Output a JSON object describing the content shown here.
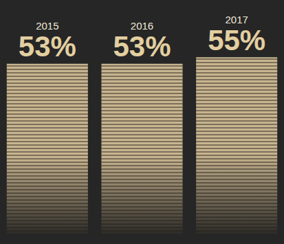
{
  "chart_data": {
    "type": "bar",
    "categories": [
      "2015",
      "2016",
      "2017"
    ],
    "values": [
      53,
      53,
      55
    ],
    "value_labels": [
      "53%",
      "53%",
      "55%"
    ],
    "color": "#c8b48f",
    "ylim": [
      0,
      60
    ],
    "data_labels": true,
    "tick_labels": false,
    "grid": false
  }
}
